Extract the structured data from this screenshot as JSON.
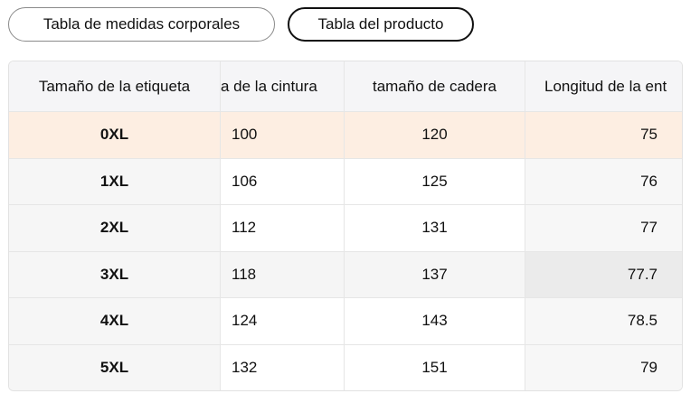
{
  "tabs": [
    "Tabla de medidas corporales",
    "Tabla del producto"
  ],
  "table": {
    "headers": [
      "Tamaño de la etiqueta",
      "a de la cintura",
      "tamaño de cadera",
      "Longitud de la ent"
    ],
    "rows": [
      [
        "0XL",
        "100",
        "120",
        "75"
      ],
      [
        "1XL",
        "106",
        "125",
        "76"
      ],
      [
        "2XL",
        "112",
        "131",
        "77"
      ],
      [
        "3XL",
        "118",
        "137",
        "77.7"
      ],
      [
        "4XL",
        "124",
        "143",
        "78.5"
      ],
      [
        "5XL",
        "132",
        "151",
        "79"
      ]
    ]
  }
}
